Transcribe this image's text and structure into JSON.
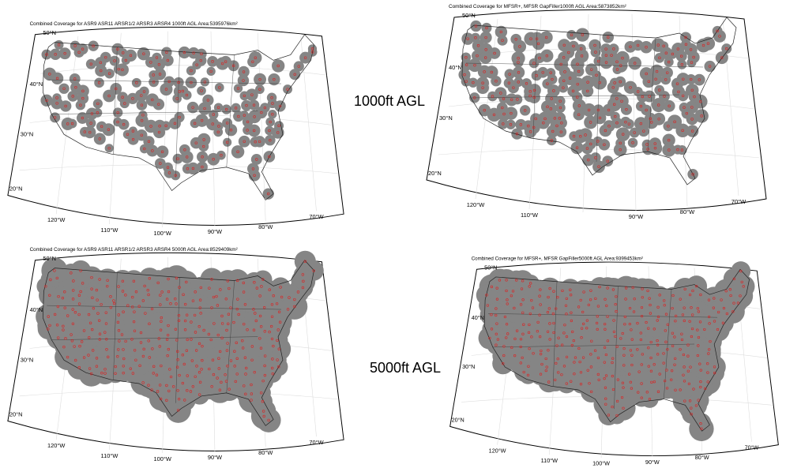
{
  "row_labels": [
    "1000ft AGL",
    "5000ft AGL"
  ],
  "panels": [
    {
      "title": "Combined Coverage for ASR9 ASR11 ARSR1/2 ARSR3 ARSR4 1000ft AGL Area:5395976km²",
      "lat_labels": [
        "50°N",
        "40°N",
        "30°N",
        "20°N"
      ],
      "lon_labels": [
        "120°W",
        "110°W",
        "100°W",
        "90°W",
        "80°W",
        "70°W"
      ]
    },
    {
      "title": "Combined Coverage for MFSR+, MFSR GapFiller1000ft AGL Area:5873852km²",
      "lat_labels": [
        "50°N",
        "40°N",
        "30°N",
        "20°N"
      ],
      "lon_labels": [
        "120°W",
        "110°W",
        "90°W",
        "80°W",
        "70°W"
      ]
    },
    {
      "title": "Combined Coverage for ASR9 ASR11 ARSR1/2 ARSR3 ARSR4 5000ft AGL Area:8529409km²",
      "lat_labels": [
        "50°N",
        "40°N",
        "30°N",
        "20°N"
      ],
      "lon_labels": [
        "120°W",
        "110°W",
        "100°W",
        "90°W",
        "80°W",
        "70°W"
      ]
    },
    {
      "title": "Combined Coverage for MFSR+, MFSR GapFiller5000ft AGL Area:9399453km²",
      "lat_labels": [
        "50°N",
        "40°N",
        "30°N",
        "20°N"
      ],
      "lon_labels": [
        "120°W",
        "110°W",
        "100°W",
        "90°W",
        "80°W",
        "70°W"
      ]
    }
  ]
}
